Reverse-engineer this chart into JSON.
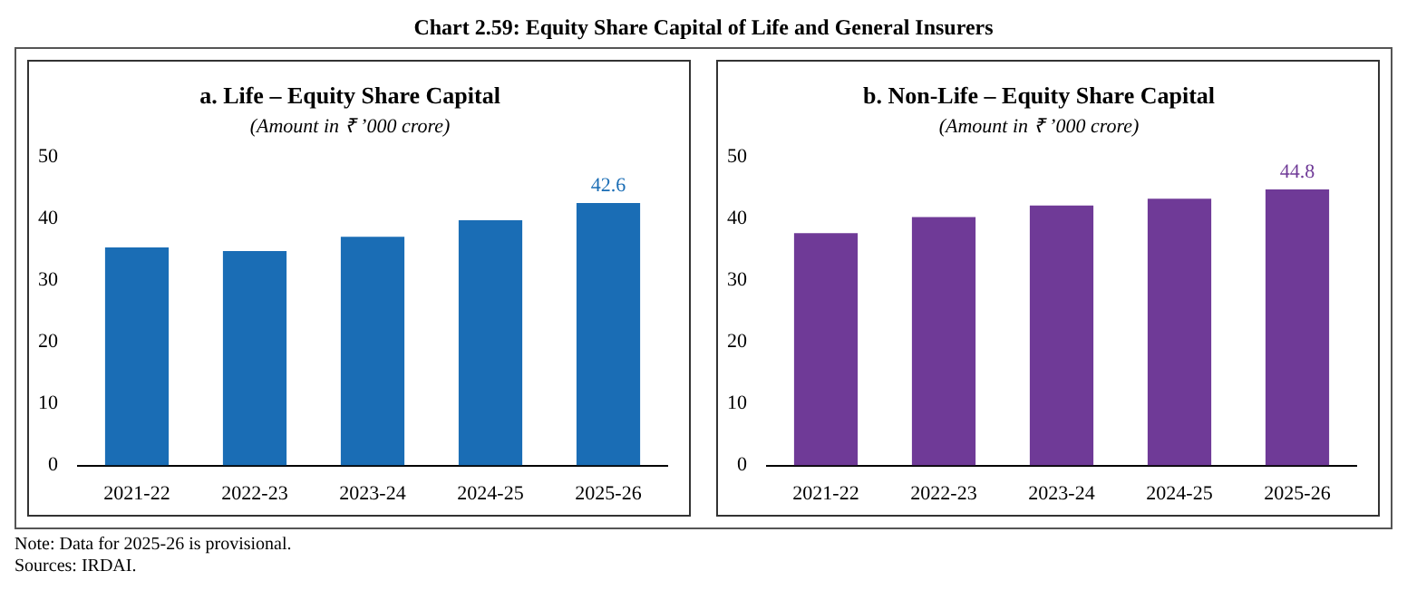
{
  "chart_data": [
    {
      "type": "bar",
      "title": "a. Life – Equity Share Capital",
      "subtitle": "(Amount in ₹ ’000 crore)",
      "annotations": [
        "Chart 2.59: Equity Share Capital of Life and General Insurers"
      ],
      "categories": [
        "2021-22",
        "2022-23",
        "2023-24",
        "2024-25",
        "2025-26"
      ],
      "values": [
        35.4,
        34.8,
        37.1,
        39.8,
        42.6
      ],
      "value_labels": [
        null,
        null,
        null,
        null,
        "42.6"
      ],
      "color": "#1a6db5",
      "ylim": [
        0,
        50
      ],
      "yticks": [
        0,
        10,
        20,
        30,
        40,
        50
      ],
      "grid": false,
      "legend": false
    },
    {
      "type": "bar",
      "title": "b. Non-Life – Equity Share Capital",
      "subtitle": "(Amount in ₹ ’000 crore)",
      "annotations": [
        "Note: Data for 2025-26 is provisional.",
        "Sources: IRDAI."
      ],
      "categories": [
        "2021-22",
        "2022-23",
        "2023-24",
        "2024-25",
        "2025-26"
      ],
      "values": [
        37.7,
        40.3,
        42.2,
        43.3,
        44.8
      ],
      "value_labels": [
        null,
        null,
        null,
        null,
        "44.8"
      ],
      "color": "#6f3a97",
      "ylim": [
        0,
        50
      ],
      "yticks": [
        0,
        10,
        20,
        30,
        40,
        50
      ],
      "grid": false,
      "legend": false
    }
  ]
}
